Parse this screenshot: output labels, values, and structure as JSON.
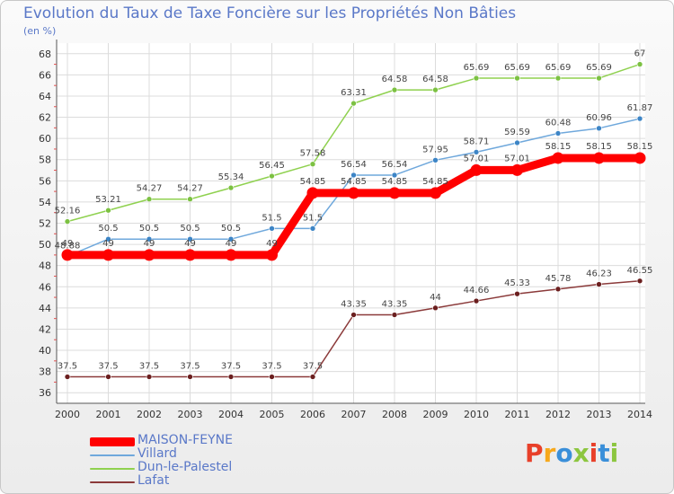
{
  "header": {
    "title": "Evolution du Taux de Taxe Foncière sur les Propriétés Non Bâties",
    "unit": "(en %)"
  },
  "logo": {
    "text": "Proxiti",
    "colors": [
      "#e8402a",
      "#f7a81b",
      "#3a8fd9",
      "#8cc63f",
      "#e8402a",
      "#3a8fd9",
      "#8cc63f"
    ]
  },
  "chart_data": {
    "type": "line",
    "title": "Evolution du Taux de Taxe Foncière sur les Propriétés Non Bâties",
    "ylabel": "(en %)",
    "xlabel": "",
    "ylim": [
      35,
      69
    ],
    "yticks": [
      36,
      38,
      40,
      42,
      44,
      46,
      48,
      50,
      52,
      54,
      56,
      58,
      60,
      62,
      64,
      66,
      68
    ],
    "grid": true,
    "legend": "bottom-left",
    "x": [
      "2000",
      "2001",
      "2002",
      "2003",
      "2004",
      "2005",
      "2006",
      "2007",
      "2008",
      "2009",
      "2010",
      "2011",
      "2012",
      "2013",
      "2014"
    ],
    "series": [
      {
        "name": "Dun-le-Palestel",
        "color": "#8fd14f",
        "dot": "#7cc142",
        "width": 1.5,
        "values": [
          52.16,
          53.21,
          54.27,
          54.27,
          55.34,
          56.45,
          57.58,
          63.31,
          64.58,
          64.58,
          65.69,
          65.69,
          65.69,
          65.69,
          67
        ],
        "labels": [
          "52.16",
          "53.21",
          "54.27",
          "54.27",
          "55.34",
          "56.45",
          "57.58",
          "63.31",
          "64.58",
          "64.58",
          "65.69",
          "65.69",
          "65.69",
          "65.69",
          "67"
        ]
      },
      {
        "name": "Villard",
        "color": "#6fa8dc",
        "dot": "#3d85c6",
        "width": 1.5,
        "values": [
          48.88,
          50.5,
          50.5,
          50.5,
          50.5,
          51.5,
          51.5,
          56.54,
          56.54,
          57.95,
          58.71,
          59.59,
          60.48,
          60.96,
          61.87
        ],
        "labels": [
          "48.88",
          "50.5",
          "50.5",
          "50.5",
          "50.5",
          "51.5",
          "51.5",
          "56.54",
          "56.54",
          "57.95",
          "58.71",
          "59.59",
          "60.48",
          "60.96",
          "61.87"
        ]
      },
      {
        "name": "MAISON-FEYNE",
        "color": "#ff0000",
        "dot": "#ff0000",
        "width": 9,
        "values": [
          49,
          49,
          49,
          49,
          49,
          49,
          54.85,
          54.85,
          54.85,
          54.85,
          57.01,
          57.01,
          58.15,
          58.15,
          58.15
        ],
        "labels": [
          "49",
          "49",
          "49",
          "49",
          "49",
          "49",
          "54.85",
          "54.85",
          "54.85",
          "54.85",
          "57.01",
          "57.01",
          "58.15",
          "58.15",
          "58.15"
        ]
      },
      {
        "name": "Lafat",
        "color": "#8b3a3a",
        "dot": "#6b1f1f",
        "width": 1.5,
        "values": [
          37.5,
          37.5,
          37.5,
          37.5,
          37.5,
          37.5,
          37.5,
          43.35,
          43.35,
          44,
          44.66,
          45.33,
          45.78,
          46.23,
          46.55
        ],
        "labels": [
          "37.5",
          "37.5",
          "37.5",
          "37.5",
          "37.5",
          "37.5",
          "37.5",
          "43.35",
          "43.35",
          "44",
          "44.66",
          "45.33",
          "45.78",
          "46.23",
          "46.55"
        ]
      }
    ],
    "legend_order": [
      "MAISON-FEYNE",
      "Villard",
      "Dun-le-Palestel",
      "Lafat"
    ]
  }
}
